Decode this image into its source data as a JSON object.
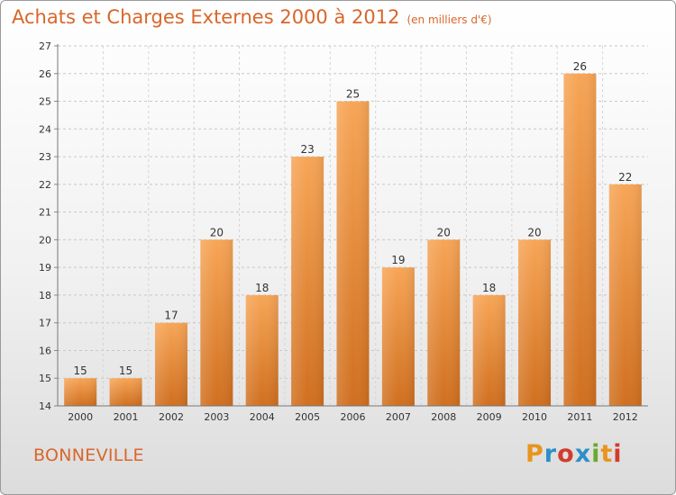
{
  "header": {
    "title": "Achats et Charges Externes 2000 à 2012",
    "unit": "(en milliers d'€)"
  },
  "footer": {
    "city": "BONNEVILLE"
  },
  "logo": {
    "letters": [
      "P",
      "r",
      "o",
      "x",
      "i",
      "t",
      "i"
    ],
    "colors": [
      "#e8951e",
      "#2e8fc9",
      "#d23c2d",
      "#2e8fc9",
      "#6aa92f",
      "#e8951e",
      "#d23c2d"
    ]
  },
  "chart_data": {
    "type": "bar",
    "title": "Achats et Charges Externes 2000 à 2012",
    "categories": [
      "2000",
      "2001",
      "2002",
      "2003",
      "2004",
      "2005",
      "2006",
      "2007",
      "2008",
      "2009",
      "2010",
      "2011",
      "2012"
    ],
    "values": [
      15,
      15,
      17,
      20,
      18,
      23,
      25,
      19,
      20,
      18,
      20,
      26,
      22
    ],
    "xlabel": "",
    "ylabel": "",
    "ylim": [
      14,
      27
    ],
    "yticks": [
      14,
      15,
      16,
      17,
      18,
      19,
      20,
      21,
      22,
      23,
      24,
      25,
      26,
      27
    ],
    "grid": "horizontal dashed",
    "bar_color": "#f0913a",
    "data_labels": true
  }
}
